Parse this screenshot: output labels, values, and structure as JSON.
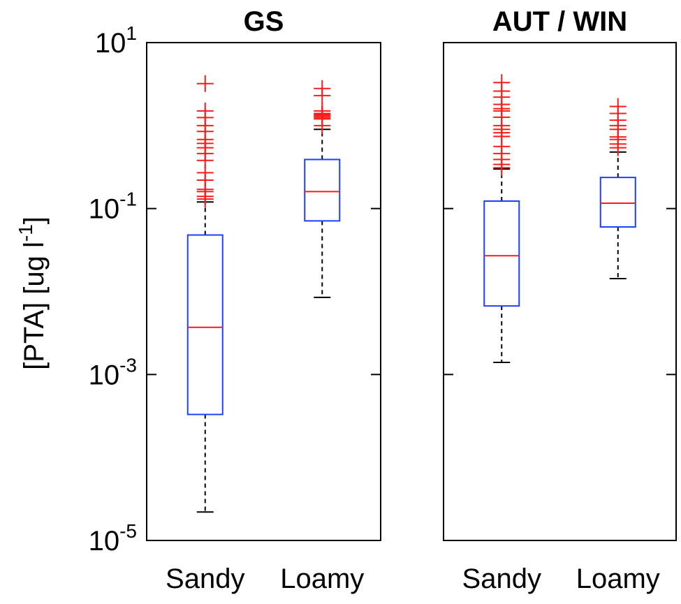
{
  "chart_data": {
    "type": "box",
    "ylabel": {
      "text": "[PTA] [ug l",
      "sup": "-1",
      "end": "]"
    },
    "log_scale": true,
    "ylim": [
      1e-05,
      10
    ],
    "yticks": [
      {
        "value": 10,
        "base": "10",
        "exp": "1"
      },
      {
        "value": 0.1,
        "base": "10",
        "exp": "-1"
      },
      {
        "value": 0.001,
        "base": "10",
        "exp": "-3"
      },
      {
        "value": 1e-05,
        "base": "10",
        "exp": "-5"
      }
    ],
    "box_color": "#1f3fff",
    "median_color": "#ff1a1a",
    "flier_color": "#ff1a1a",
    "whisker_color": "#000000",
    "panels": [
      {
        "title": "GS",
        "categories": [
          "Sandy",
          "Loamy"
        ],
        "boxes": [
          {
            "whislo": 2.2e-05,
            "q1": 0.00033,
            "med": 0.0037,
            "q3": 0.048,
            "whishi": 0.12,
            "fliers": [
              3.2,
              1.5,
              1.25,
              1.0,
              0.85,
              0.68,
              0.61,
              0.54,
              0.46,
              0.38,
              0.27,
              0.22,
              0.17,
              0.16,
              0.14,
              0.13
            ]
          },
          {
            "whislo": 0.0085,
            "q1": 0.071,
            "med": 0.16,
            "q3": 0.39,
            "whishi": 0.9,
            "fliers": [
              2.8,
              2.3,
              1.5,
              1.4,
              1.35,
              1.3,
              1.25,
              1.2,
              1.0
            ]
          }
        ]
      },
      {
        "title": "AUT / WIN",
        "categories": [
          "Sandy",
          "Loamy"
        ],
        "boxes": [
          {
            "whislo": 0.0014,
            "q1": 0.0067,
            "med": 0.027,
            "q3": 0.123,
            "whishi": 0.3,
            "fliers": [
              3.3,
              2.6,
              2.2,
              1.8,
              1.6,
              1.5,
              1.26,
              1.0,
              0.9,
              0.82,
              0.74,
              0.56,
              0.46,
              0.39,
              0.34,
              0.31
            ]
          },
          {
            "whislo": 0.0143,
            "q1": 0.06,
            "med": 0.116,
            "q3": 0.237,
            "whishi": 0.48,
            "fliers": [
              1.7,
              1.4,
              1.16,
              1.0,
              0.9,
              0.73,
              0.68,
              0.6,
              0.54
            ]
          }
        ]
      }
    ]
  }
}
